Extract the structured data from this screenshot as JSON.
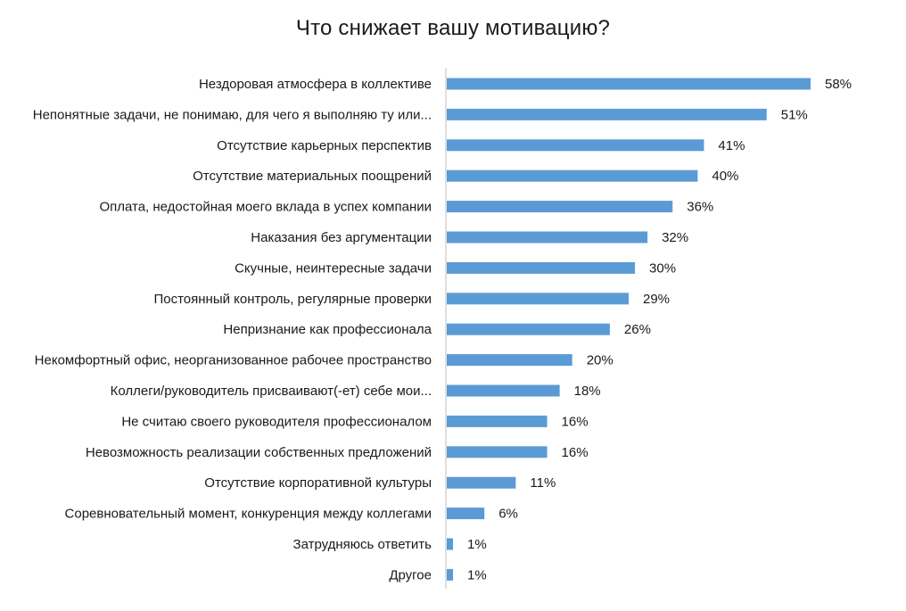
{
  "chart_data": {
    "type": "bar",
    "orientation": "horizontal",
    "title": "Что снижает вашу мотивацию?",
    "value_suffix": "%",
    "bar_color": "#5b9bd5",
    "axis_color": "#bfbfbf",
    "xlim": [
      0,
      65
    ],
    "grid": false,
    "categories": [
      "Нездоровая атмосфера в коллективе",
      "Непонятные задачи, не понимаю, для чего я выполняю ту или...",
      "Отсутствие карьерных перспектив",
      "Отсутствие материальных поощрений",
      "Оплата, недостойная моего вклада в успех компании",
      "Наказания без аргументации",
      "Скучные, неинтересные задачи",
      "Постоянный контроль, регулярные проверки",
      "Непризнание как профессионала",
      "Некомфортный офис, неорганизованное рабочее пространство",
      "Коллеги/руководитель присваивают(-ет) себе мои...",
      "Не считаю своего руководителя профессионалом",
      "Невозможность реализации собственных предложений",
      "Отсутствие корпоративной культуры",
      "Соревновательный момент, конкуренция между коллегами",
      "Затрудняюсь ответить",
      "Другое"
    ],
    "values": [
      58,
      51,
      41,
      40,
      36,
      32,
      30,
      29,
      26,
      20,
      18,
      16,
      16,
      11,
      6,
      1,
      1
    ],
    "value_labels": [
      "58%",
      "51%",
      "41%",
      "40%",
      "36%",
      "32%",
      "30%",
      "29%",
      "26%",
      "20%",
      "18%",
      "16%",
      "16%",
      "11%",
      "6%",
      "1%",
      "1%"
    ]
  }
}
